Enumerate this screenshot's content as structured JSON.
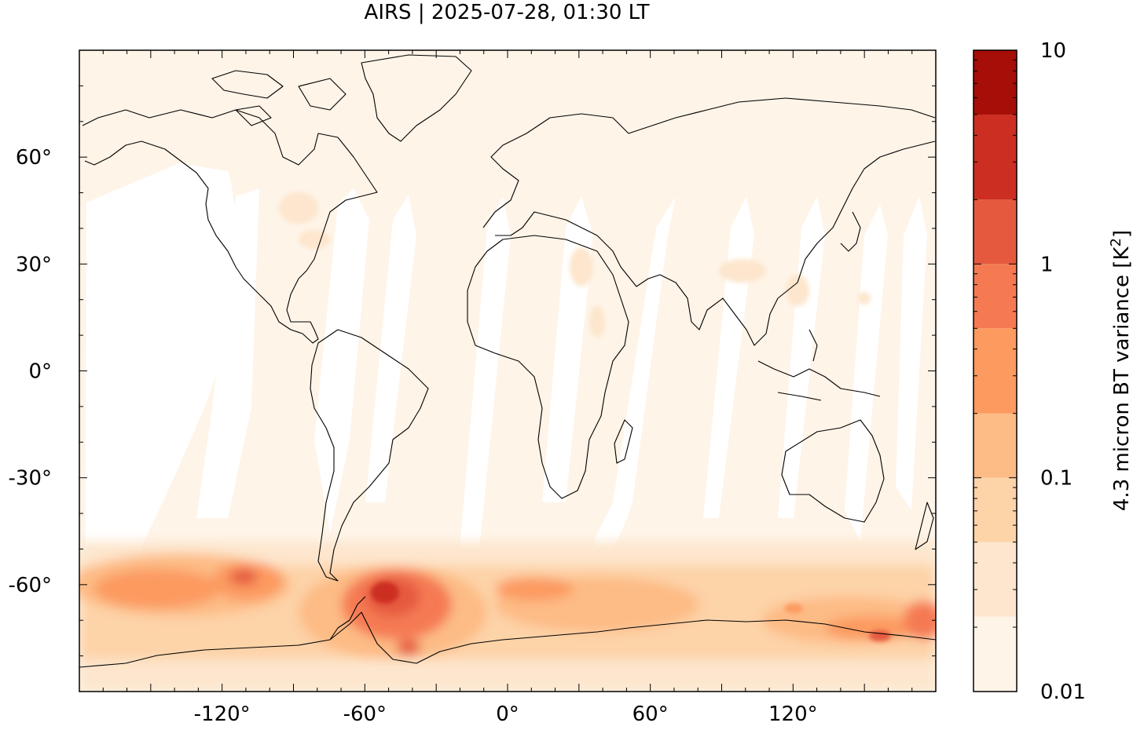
{
  "title": "AIRS | 2025-07-28, 01:30 LT",
  "map": {
    "lon_range": [
      -180,
      180
    ],
    "lat_range": [
      -90,
      90
    ],
    "x_ticks": [
      {
        "lon": -120,
        "label": "-120°"
      },
      {
        "lon": -60,
        "label": "-60°"
      },
      {
        "lon": 0,
        "label": "0°"
      },
      {
        "lon": 60,
        "label": "60°"
      },
      {
        "lon": 120,
        "label": "120°"
      }
    ],
    "y_ticks": [
      {
        "lat": 60,
        "label": "60°"
      },
      {
        "lat": 30,
        "label": "30°"
      },
      {
        "lat": 0,
        "label": "0°"
      },
      {
        "lat": -30,
        "label": "-30°"
      },
      {
        "lat": -60,
        "label": "-60°"
      }
    ]
  },
  "colorbar": {
    "label_main": "4.3 micron BT variance [K",
    "label_sup": "2",
    "label_end": "]",
    "scale": "log",
    "range": [
      0.01,
      10
    ],
    "ticks": [
      {
        "value": 10,
        "label": "10"
      },
      {
        "value": 1,
        "label": "1"
      },
      {
        "value": 0.1,
        "label": "0.1"
      },
      {
        "value": 0.01,
        "label": "0.01"
      }
    ],
    "levels": [
      0.01,
      0.0224,
      0.05,
      0.1,
      0.2,
      0.5,
      1,
      2,
      5,
      10
    ],
    "colors": [
      "#fef4e8",
      "#fde6cd",
      "#fdd3a8",
      "#fdbb85",
      "#fc9a60",
      "#f57a52",
      "#e55a3f",
      "#cc2f22",
      "#a50f07"
    ]
  },
  "colors": {
    "base": "#fef4e8",
    "swath_gap": "#ffffff",
    "coastline": "#000000"
  }
}
